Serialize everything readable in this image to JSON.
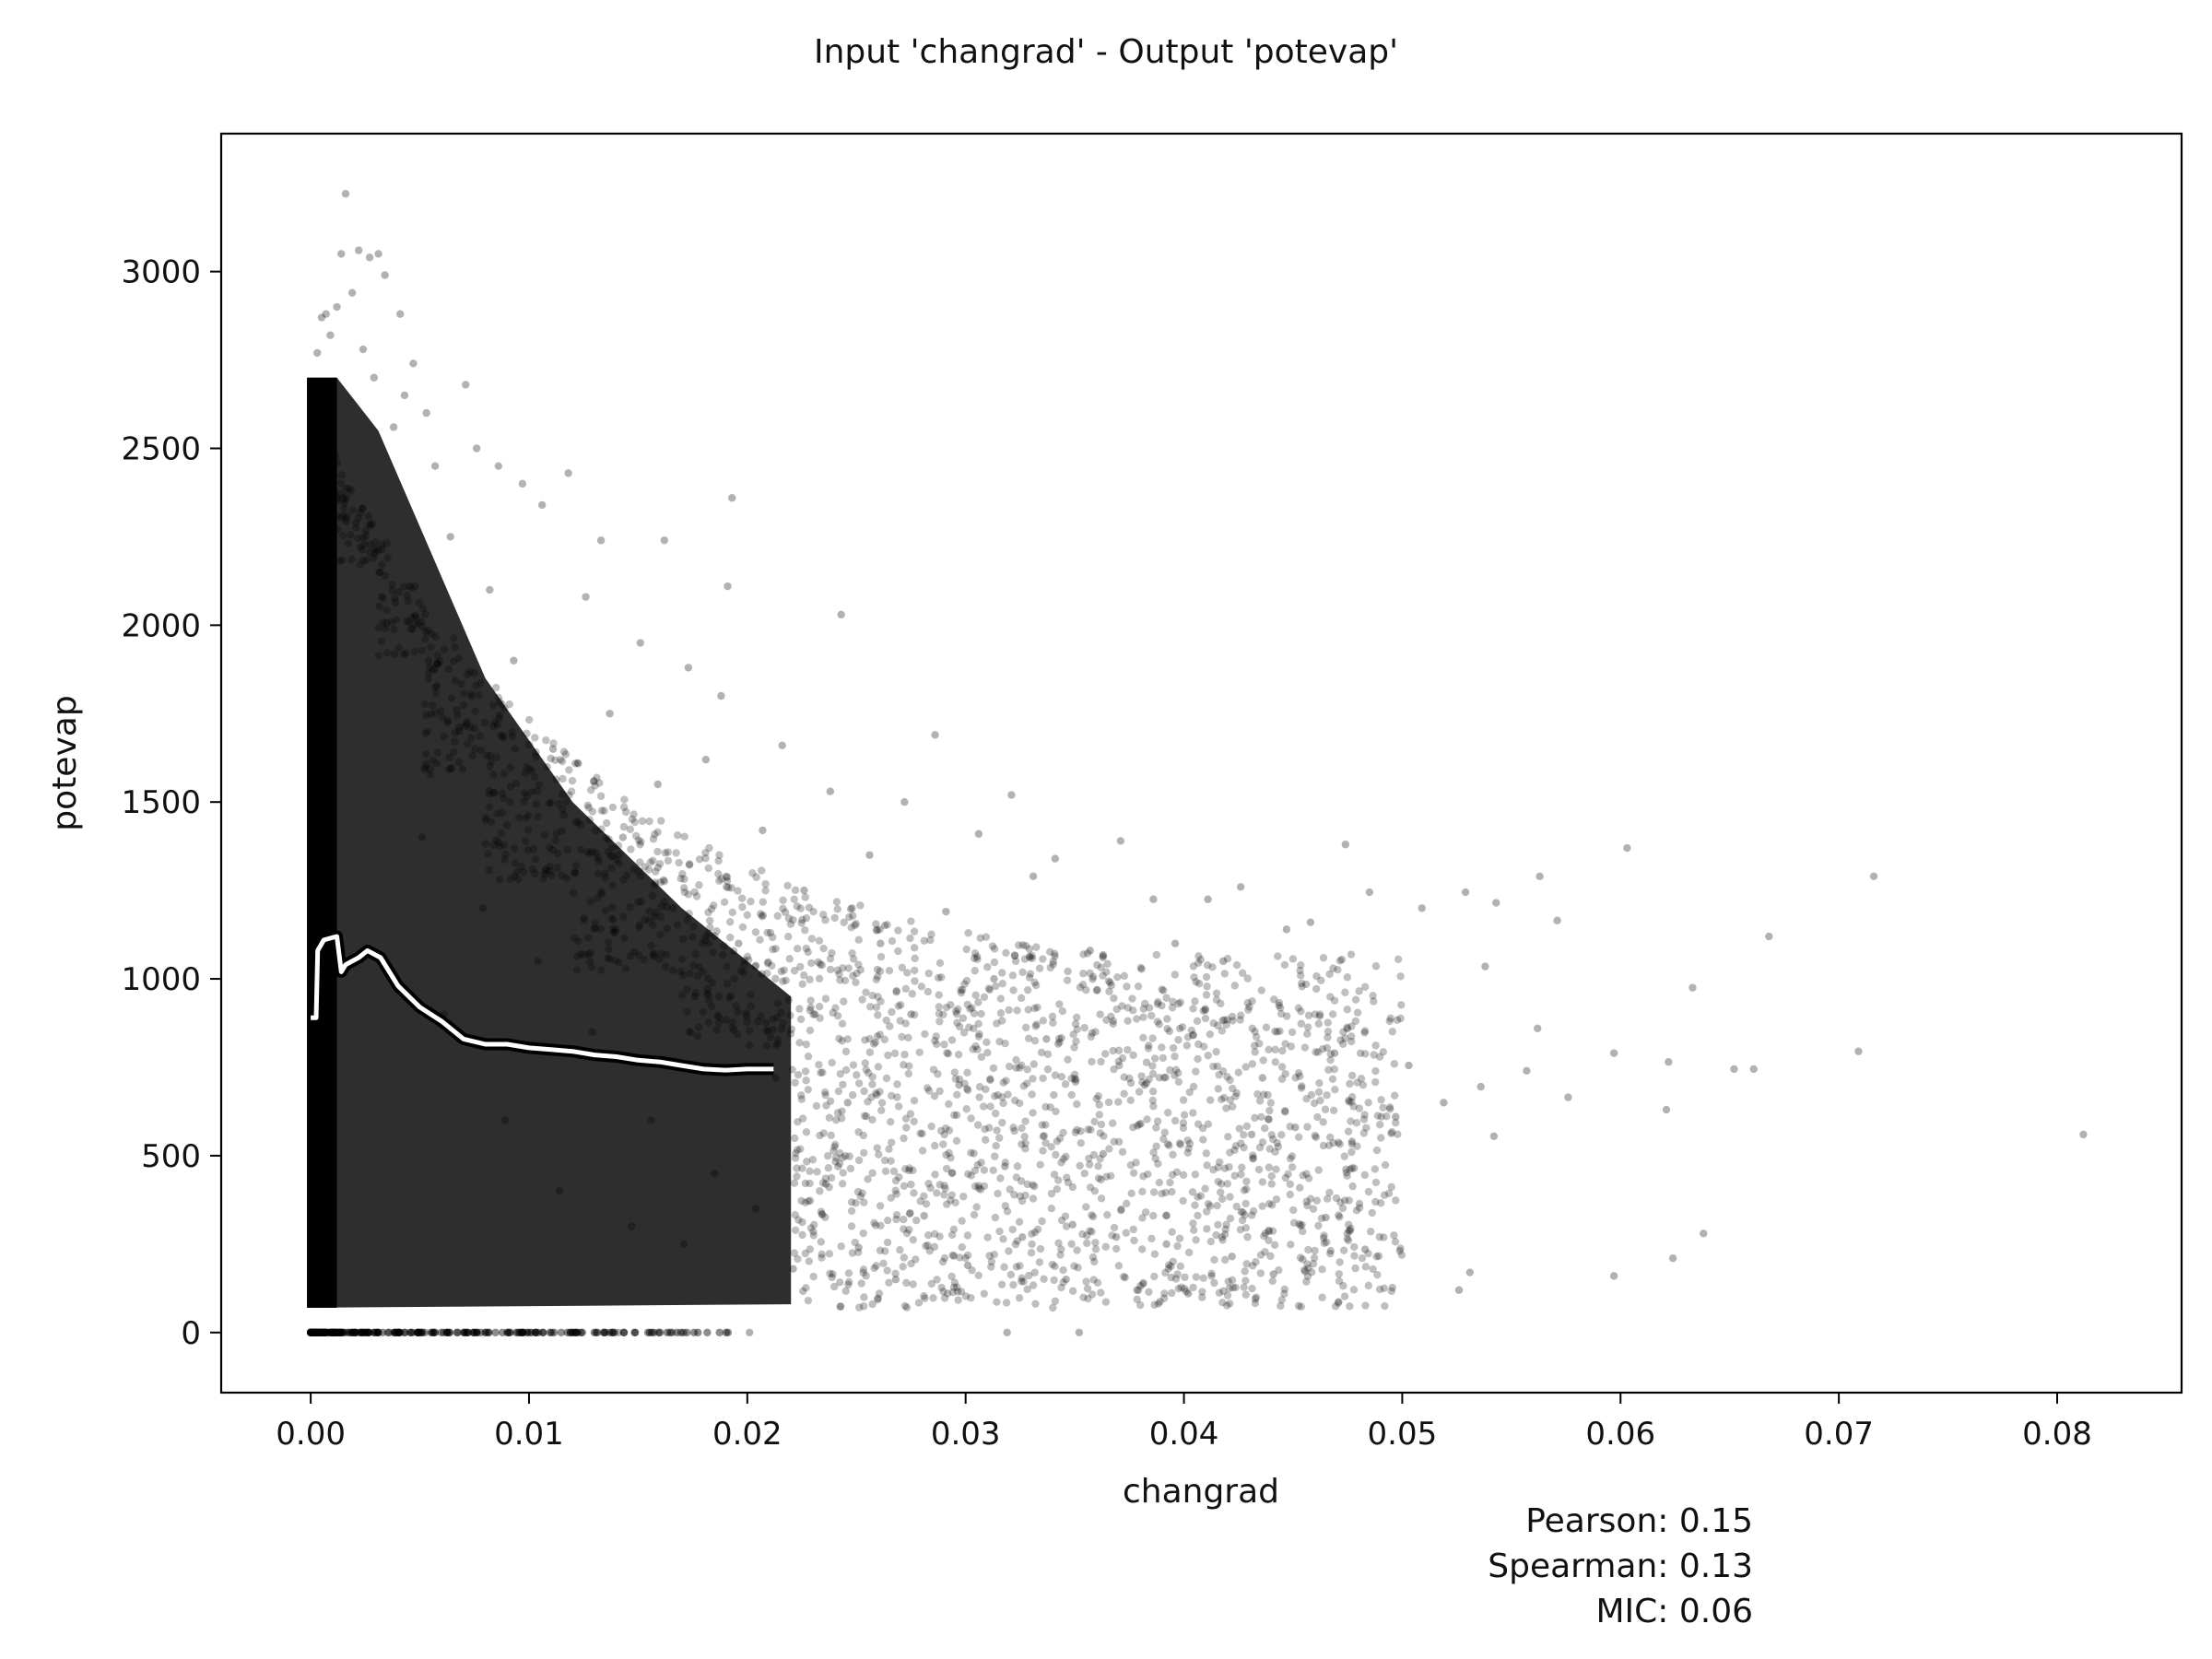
{
  "chart_data": {
    "type": "scatter",
    "title": "Input 'changrad' - Output 'potevap'",
    "xlabel": "changrad",
    "ylabel": "potevap",
    "xlim": [
      -0.0041,
      0.0857
    ],
    "ylim": [
      -170,
      3390
    ],
    "x_ticks": [
      0.0,
      0.01,
      0.02,
      0.03,
      0.04,
      0.05,
      0.06,
      0.07,
      0.08
    ],
    "x_tick_labels": [
      "0.00",
      "0.01",
      "0.02",
      "0.03",
      "0.04",
      "0.05",
      "0.06",
      "0.07",
      "0.08"
    ],
    "y_ticks": [
      0,
      500,
      1000,
      1500,
      2000,
      2500,
      3000
    ],
    "y_tick_labels": [
      "0",
      "500",
      "1000",
      "1500",
      "2000",
      "2500",
      "3000"
    ],
    "grid": false,
    "point_color": "#000000",
    "point_alpha": 0.25,
    "trend_color": "#ffffff",
    "trend_outline_color": "#000000",
    "scatter_points": [
      [
        0.0812,
        560
      ],
      [
        0.0716,
        1290
      ],
      [
        0.0709,
        795
      ],
      [
        0.0668,
        1120
      ],
      [
        0.0661,
        745
      ],
      [
        0.0652,
        745
      ],
      [
        0.0638,
        280
      ],
      [
        0.0633,
        975
      ],
      [
        0.0624,
        210
      ],
      [
        0.0622,
        765
      ],
      [
        0.0621,
        630
      ],
      [
        0.0603,
        1370
      ],
      [
        0.0597,
        790
      ],
      [
        0.0597,
        160
      ],
      [
        0.0576,
        665
      ],
      [
        0.0571,
        1165
      ],
      [
        0.0562,
        860
      ],
      [
        0.0563,
        1290
      ],
      [
        0.0557,
        740
      ],
      [
        0.0543,
        1215
      ],
      [
        0.0542,
        555
      ],
      [
        0.0538,
        1035
      ],
      [
        0.0536,
        695
      ],
      [
        0.0531,
        170
      ],
      [
        0.0529,
        1245
      ],
      [
        0.0526,
        120
      ],
      [
        0.0519,
        650
      ],
      [
        0.0509,
        1200
      ],
      [
        0.0503,
        755
      ],
      [
        0.0497,
        610
      ],
      [
        0.0485,
        1245
      ],
      [
        0.0483,
        235
      ],
      [
        0.0477,
        540
      ],
      [
        0.0474,
        1380
      ],
      [
        0.0469,
        790
      ],
      [
        0.0465,
        325
      ],
      [
        0.0458,
        1160
      ],
      [
        0.0451,
        580
      ],
      [
        0.0447,
        1140
      ],
      [
        0.0441,
        165
      ],
      [
        0.0436,
        720
      ],
      [
        0.0431,
        560
      ],
      [
        0.0426,
        1260
      ],
      [
        0.0422,
        215
      ],
      [
        0.0418,
        1050
      ],
      [
        0.0411,
        1225
      ],
      [
        0.0402,
        110
      ],
      [
        0.0396,
        1100
      ],
      [
        0.0392,
        250
      ],
      [
        0.0386,
        1225
      ],
      [
        0.0382,
        700
      ],
      [
        0.0371,
        1390
      ],
      [
        0.0369,
        270
      ],
      [
        0.0363,
        505
      ],
      [
        0.0357,
        1080
      ],
      [
        0.0352,
        0
      ],
      [
        0.0349,
        305
      ],
      [
        0.0346,
        150
      ],
      [
        0.0341,
        1340
      ],
      [
        0.0337,
        830
      ],
      [
        0.0331,
        1290
      ],
      [
        0.0326,
        270
      ],
      [
        0.0321,
        1520
      ],
      [
        0.0318,
        470
      ],
      [
        0.0319,
        0
      ],
      [
        0.0313,
        1000
      ],
      [
        0.0306,
        1410
      ],
      [
        0.0301,
        190
      ],
      [
        0.0297,
        700
      ],
      [
        0.0291,
        1190
      ],
      [
        0.0286,
        1690
      ],
      [
        0.0281,
        330
      ],
      [
        0.0275,
        900
      ],
      [
        0.0272,
        1500
      ],
      [
        0.0268,
        150
      ],
      [
        0.0261,
        1100
      ],
      [
        0.0256,
        1350
      ],
      [
        0.0251,
        240
      ],
      [
        0.0246,
        650
      ],
      [
        0.0243,
        2030
      ],
      [
        0.0238,
        1530
      ],
      [
        0.0236,
        420
      ],
      [
        0.0231,
        900
      ],
      [
        0.0226,
        1250
      ],
      [
        0.0221,
        180
      ],
      [
        0.0216,
        1660
      ],
      [
        0.0213,
        720
      ],
      [
        0.0207,
        1420
      ],
      [
        0.0204,
        350
      ],
      [
        0.0201,
        0
      ],
      [
        0.0196,
        1100
      ],
      [
        0.0193,
        2360
      ],
      [
        0.0191,
        2110
      ],
      [
        0.0188,
        1800
      ],
      [
        0.0185,
        450
      ],
      [
        0.0181,
        1620
      ],
      [
        0.0176,
        950
      ],
      [
        0.0173,
        1880
      ],
      [
        0.0171,
        250
      ],
      [
        0.0166,
        1200
      ],
      [
        0.0162,
        2240
      ],
      [
        0.0159,
        1550
      ],
      [
        0.0156,
        600
      ],
      [
        0.0151,
        1950
      ],
      [
        0.0147,
        300
      ],
      [
        0.0143,
        1400
      ],
      [
        0.0141,
        0
      ],
      [
        0.0137,
        1750
      ],
      [
        0.0133,
        2240
      ],
      [
        0.0129,
        850
      ],
      [
        0.0126,
        2080
      ],
      [
        0.0121,
        1300
      ],
      [
        0.0118,
        2430
      ],
      [
        0.0114,
        400
      ],
      [
        0.0111,
        1650
      ],
      [
        0.0106,
        2340
      ],
      [
        0.0104,
        1050
      ],
      [
        0.0101,
        0
      ],
      [
        0.0097,
        2400
      ],
      [
        0.0093,
        1900
      ],
      [
        0.0089,
        600
      ],
      [
        0.0086,
        2450
      ],
      [
        0.0082,
        2100
      ],
      [
        0.0079,
        1200
      ],
      [
        0.0076,
        2500
      ],
      [
        0.0071,
        2680
      ],
      [
        0.0068,
        1700
      ],
      [
        0.0064,
        2250
      ],
      [
        0.0061,
        900
      ],
      [
        0.0057,
        2450
      ],
      [
        0.0053,
        2600
      ],
      [
        0.0051,
        1400
      ],
      [
        0.0047,
        2740
      ],
      [
        0.0043,
        2650
      ],
      [
        0.0041,
        2880
      ],
      [
        0.0038,
        2560
      ],
      [
        0.0034,
        2990
      ],
      [
        0.0031,
        3050
      ],
      [
        0.0029,
        2700
      ],
      [
        0.0027,
        3040
      ],
      [
        0.0024,
        2780
      ],
      [
        0.0022,
        3060
      ],
      [
        0.0019,
        2940
      ],
      [
        0.0016,
        3220
      ],
      [
        0.0014,
        3050
      ],
      [
        0.0012,
        2900
      ],
      [
        0.0009,
        2820
      ],
      [
        0.0007,
        2880
      ],
      [
        0.0005,
        2870
      ],
      [
        0.0003,
        2770
      ]
    ],
    "dense_bands": [
      {
        "x_max": 0.0012,
        "y_min": 70,
        "y_max": 2700
      },
      {
        "x_max": 0.0031,
        "y_min": 70,
        "y_max": 2550
      },
      {
        "x_max": 0.0052,
        "y_min": 70,
        "y_max": 2250
      },
      {
        "x_max": 0.008,
        "y_min": 70,
        "y_max": 1850
      },
      {
        "x_max": 0.012,
        "y_min": 70,
        "y_max": 1500
      },
      {
        "x_max": 0.017,
        "y_min": 70,
        "y_max": 1200
      },
      {
        "x_max": 0.022,
        "y_min": 80,
        "y_max": 950
      }
    ],
    "zero_band": {
      "x_min": 0.0,
      "x_max": 0.0192,
      "y": 0
    },
    "trend_line": [
      [
        0.0,
        890
      ],
      [
        0.00025,
        890
      ],
      [
        0.00032,
        1080
      ],
      [
        0.0006,
        1110
      ],
      [
        0.0012,
        1120
      ],
      [
        0.0014,
        1020
      ],
      [
        0.0016,
        1040
      ],
      [
        0.0022,
        1060
      ],
      [
        0.0026,
        1080
      ],
      [
        0.0032,
        1060
      ],
      [
        0.004,
        980
      ],
      [
        0.005,
        920
      ],
      [
        0.006,
        880
      ],
      [
        0.007,
        830
      ],
      [
        0.008,
        815
      ],
      [
        0.009,
        815
      ],
      [
        0.01,
        805
      ],
      [
        0.011,
        800
      ],
      [
        0.012,
        795
      ],
      [
        0.013,
        785
      ],
      [
        0.014,
        780
      ],
      [
        0.015,
        770
      ],
      [
        0.016,
        765
      ],
      [
        0.017,
        755
      ],
      [
        0.018,
        745
      ],
      [
        0.019,
        742
      ],
      [
        0.02,
        745
      ],
      [
        0.0212,
        745
      ]
    ],
    "stats": {
      "pearson": "Pearson: 0.15",
      "spearman": "Spearman: 0.13",
      "mic": "MIC: 0.06"
    }
  }
}
